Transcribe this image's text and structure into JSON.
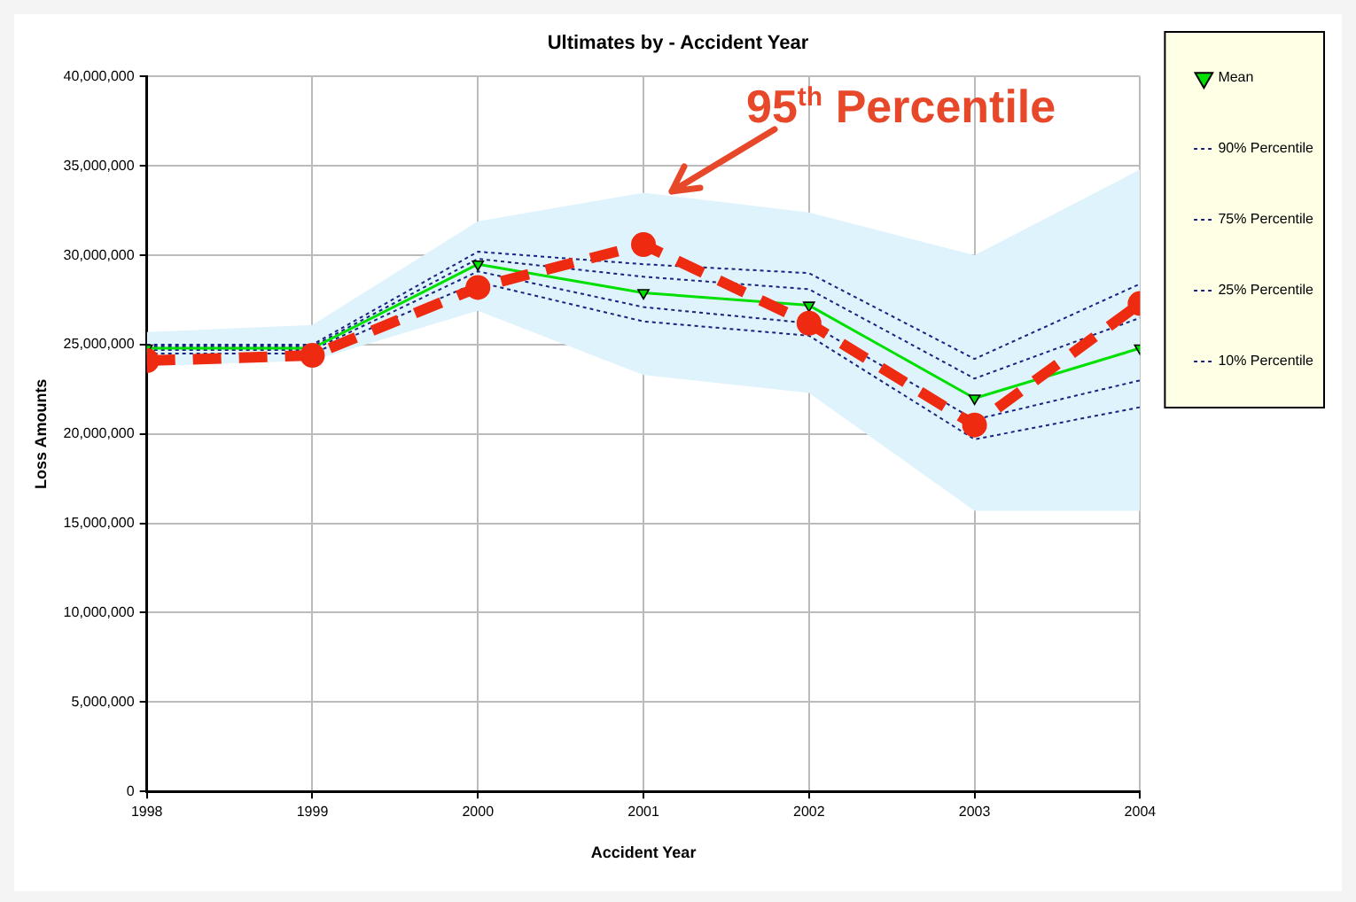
{
  "chart_data": {
    "type": "line",
    "title": "Ultimates by - Accident Year",
    "xlabel": "Accident Year",
    "ylabel": "Loss Amounts",
    "x": [
      1998,
      1999,
      2000,
      2001,
      2002,
      2003,
      2004
    ],
    "xlim": [
      1998,
      2004
    ],
    "xticks": [
      1998,
      1999,
      2000,
      2001,
      2002,
      2003,
      2004
    ],
    "ylim": [
      0,
      40000000
    ],
    "yticks": [
      {
        "value": 0,
        "label": "0"
      },
      {
        "value": 5000000,
        "label": "5,000,000"
      },
      {
        "value": 10000000,
        "label": "10,000,000"
      },
      {
        "value": 15000000,
        "label": "15,000,000"
      },
      {
        "value": 20000000,
        "label": "20,000,000"
      },
      {
        "value": 25000000,
        "label": "25,000,000"
      },
      {
        "value": 30000000,
        "label": "30,000,000"
      },
      {
        "value": 35000000,
        "label": "35,000,000"
      },
      {
        "value": 40000000,
        "label": "40,000,000"
      }
    ],
    "grid": true,
    "legend": "right",
    "series": [
      {
        "name": "90% Percentile",
        "color": "#1a237e",
        "line_style": "dotted",
        "marker": "none",
        "values": [
          25000000,
          25000000,
          30200000,
          29500000,
          29000000,
          24200000,
          28400000
        ]
      },
      {
        "name": "75% Percentile",
        "color": "#1a237e",
        "line_style": "dotted",
        "marker": "none",
        "values": [
          24900000,
          24900000,
          29800000,
          28800000,
          28100000,
          23100000,
          26500000
        ]
      },
      {
        "name": "25% Percentile",
        "color": "#1a237e",
        "line_style": "dotted",
        "marker": "none",
        "values": [
          24700000,
          24700000,
          29100000,
          27100000,
          26200000,
          20800000,
          23000000
        ]
      },
      {
        "name": "10% Percentile",
        "color": "#1a237e",
        "line_style": "dotted",
        "marker": "none",
        "values": [
          24500000,
          24500000,
          28500000,
          26300000,
          25500000,
          19700000,
          21500000
        ]
      },
      {
        "name": "Mean",
        "color": "#00e000",
        "line_style": "solid",
        "marker": "triangle",
        "values": [
          24800000,
          24800000,
          29500000,
          27900000,
          27200000,
          22000000,
          24800000
        ],
        "lower": [
          23800000,
          24100000,
          26900000,
          23300000,
          22300000,
          15700000,
          15700000
        ],
        "upper": [
          25700000,
          26100000,
          31900000,
          33500000,
          32400000,
          30000000,
          34800000
        ]
      },
      {
        "name": "95$^{th}$ Percentile",
        "color": "#ee2a10",
        "line_style": "dashed",
        "marker": "circle",
        "values": [
          24100000,
          24400000,
          28200000,
          30600000,
          26200000,
          20500000,
          27300000
        ]
      }
    ]
  }
}
